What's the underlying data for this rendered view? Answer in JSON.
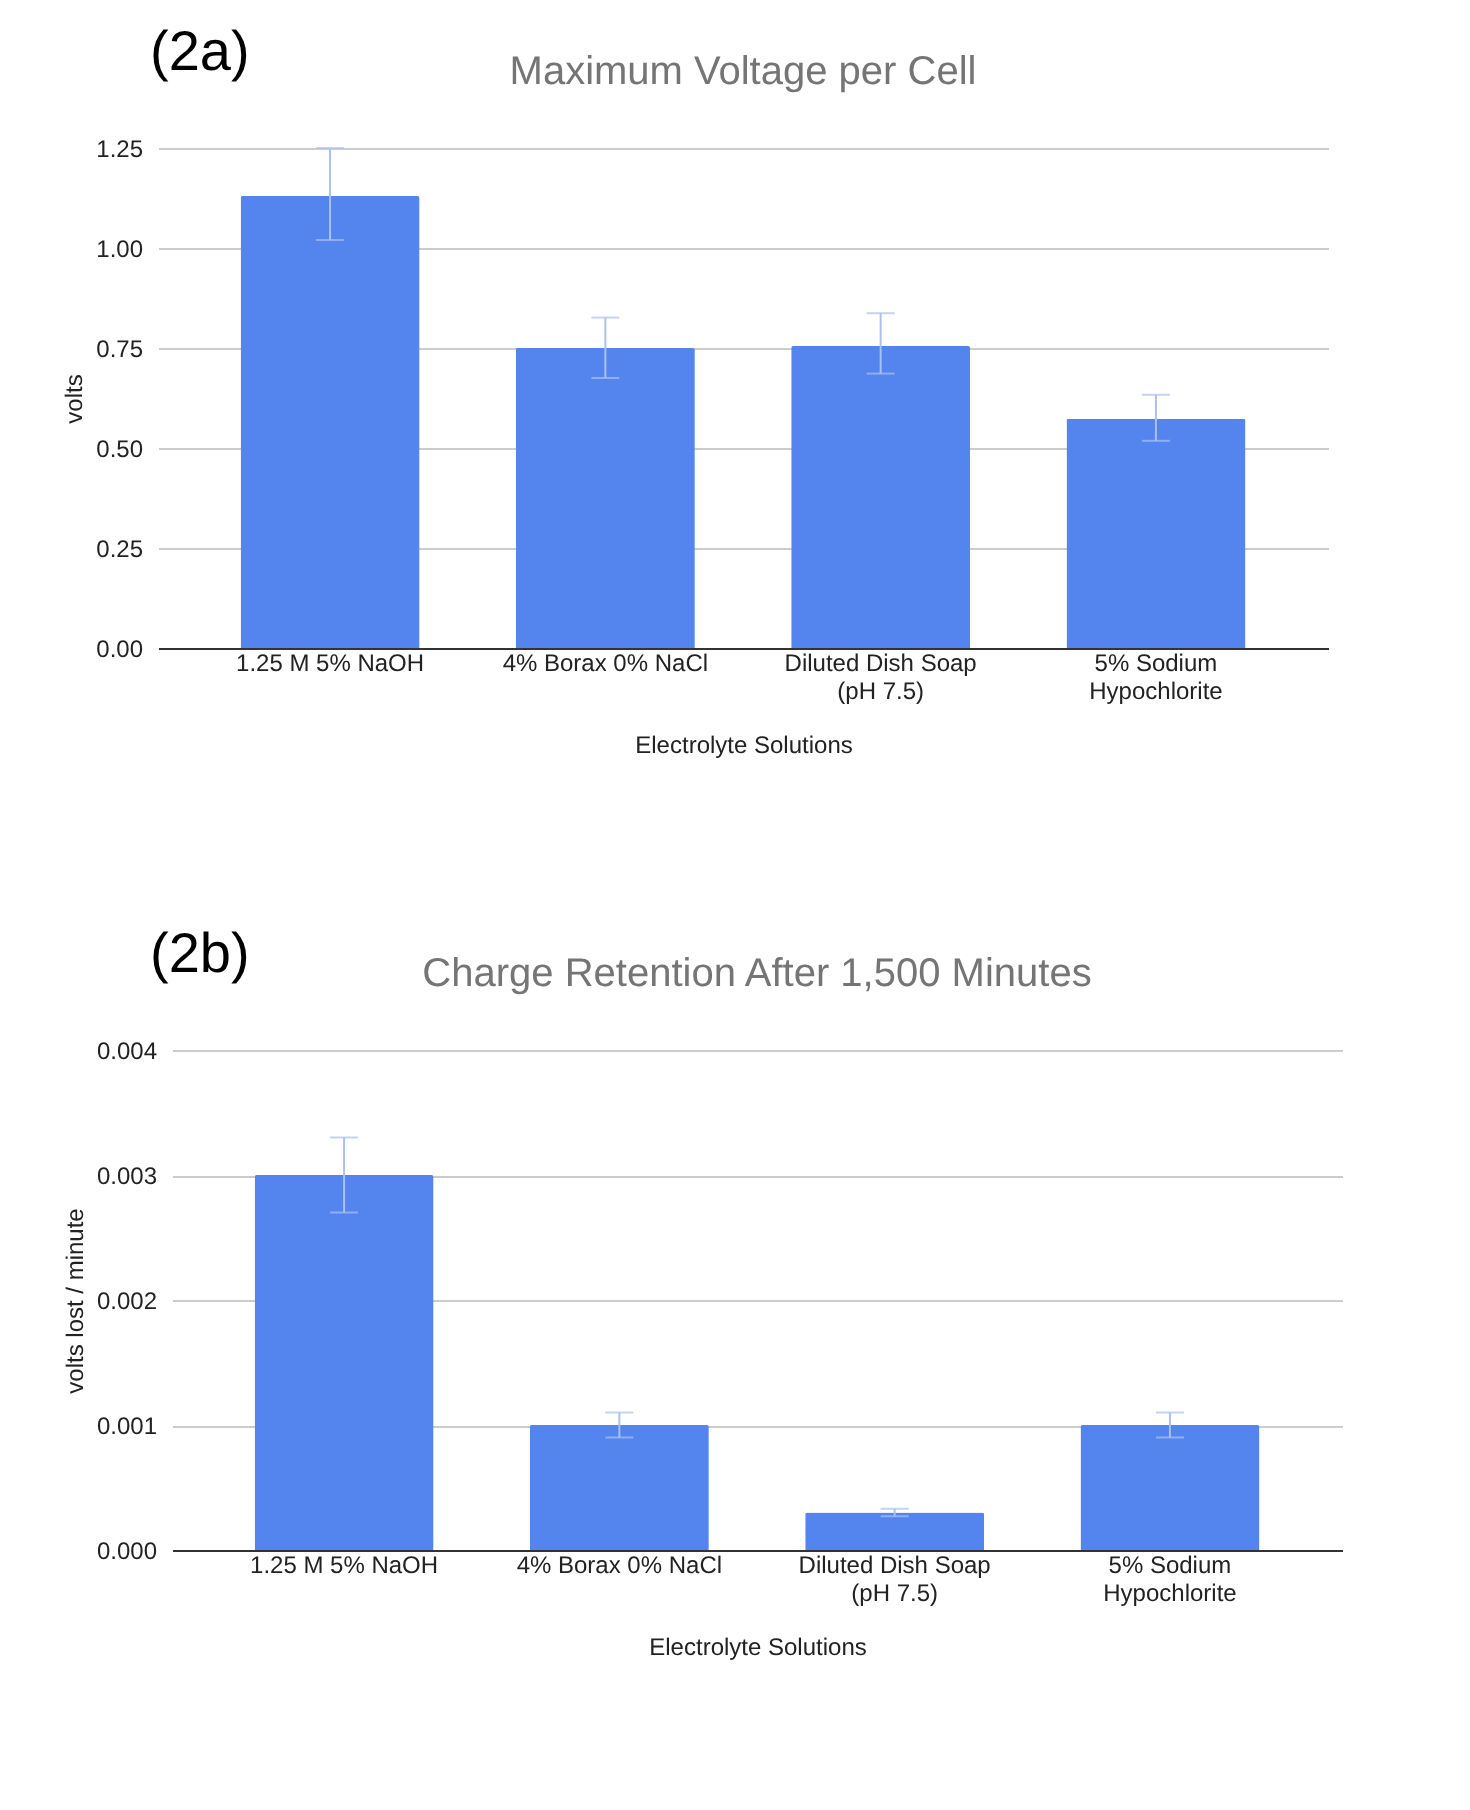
{
  "chart_data": [
    {
      "type": "bar",
      "title": "Maximum Voltage per Cell",
      "xlabel": "Electrolyte Solutions",
      "ylabel": "volts",
      "annotations": [
        "(2a)"
      ],
      "categories": [
        "1.25 M 5% NaOH",
        "4% Borax 0% NaCl",
        "Diluted Dish Soap (pH 7.5)",
        "5% Sodium Hypochlorite"
      ],
      "values": [
        1.13,
        0.75,
        0.755,
        0.573
      ],
      "color": "#5484ed",
      "errors": [
        [
          1.02,
          1.25
        ],
        [
          0.675,
          0.826
        ],
        [
          0.686,
          0.837
        ],
        [
          0.518,
          0.633
        ]
      ],
      "ylim": [
        0,
        1.25
      ],
      "yticks": [
        {
          "value": 0,
          "label": "0.00"
        },
        {
          "value": 0.25,
          "label": "0.25"
        },
        {
          "value": 0.5,
          "label": "0.50"
        },
        {
          "value": 0.75,
          "label": "0.75"
        },
        {
          "value": 1,
          "label": "1.00"
        },
        {
          "value": 1.25,
          "label": "1.25"
        }
      ],
      "grid": "y"
    },
    {
      "type": "bar",
      "title": "Charge Retention After 1,500 Minutes",
      "xlabel": "Electrolyte Solutions",
      "ylabel": "volts lost / minute",
      "annotations": [
        "(2b)"
      ],
      "categories": [
        "1.25 M 5% NaOH",
        "4% Borax 0% NaCl",
        "Diluted Dish Soap (pH 7.5)",
        "5% Sodium Hypochlorite"
      ],
      "values": [
        0.003,
        0.001,
        0.0003,
        0.001
      ],
      "color": "#5484ed",
      "errors": [
        [
          0.0027,
          0.0033
        ],
        [
          0.0009,
          0.0011
        ],
        [
          0.00027,
          0.00033
        ],
        [
          0.0009,
          0.0011
        ]
      ],
      "ylim": [
        0,
        0.004
      ],
      "yticks": [
        {
          "value": 0,
          "label": "0.000"
        },
        {
          "value": 0.001,
          "label": "0.001"
        },
        {
          "value": 0.002,
          "label": "0.002"
        },
        {
          "value": 0.003,
          "label": "0.003"
        },
        {
          "value": 0.004,
          "label": "0.004"
        }
      ],
      "grid": "y"
    }
  ]
}
